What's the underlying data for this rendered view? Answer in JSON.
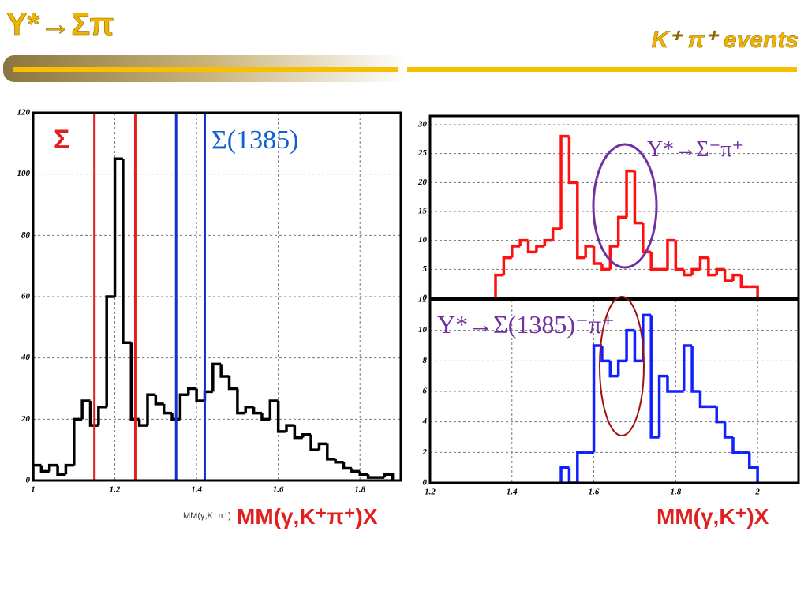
{
  "slide": {
    "title": "Y*→Σπ",
    "subtitle": "K⁺ π⁺ events"
  },
  "chart_data": [
    {
      "type": "histogram",
      "color": "#000000",
      "grid": true,
      "bins": [
        1.0,
        1.02,
        1.04,
        1.06,
        1.08,
        1.1,
        1.12,
        1.14,
        1.16,
        1.18,
        1.2,
        1.22,
        1.24,
        1.26,
        1.28,
        1.3,
        1.32,
        1.34,
        1.36,
        1.38,
        1.4,
        1.42,
        1.44,
        1.46,
        1.48,
        1.5,
        1.52,
        1.54,
        1.56,
        1.58,
        1.6,
        1.62,
        1.64,
        1.66,
        1.68,
        1.7,
        1.72,
        1.74,
        1.76,
        1.78,
        1.8,
        1.82,
        1.84,
        1.86,
        1.88
      ],
      "values": [
        5,
        3,
        5,
        2,
        5,
        20,
        26,
        18,
        24,
        60,
        105,
        45,
        20,
        18,
        28,
        25,
        22,
        20,
        28,
        30,
        26,
        29,
        38,
        34,
        30,
        22,
        24,
        22,
        20,
        26,
        16,
        18,
        14,
        15,
        10,
        12,
        7,
        6,
        4,
        3,
        2,
        1,
        1,
        2
      ],
      "xlim": [
        1.0,
        1.9
      ],
      "ylim": [
        0,
        120
      ],
      "xticks": [
        1,
        1.2,
        1.4,
        1.6,
        1.8
      ],
      "yticks": [
        0,
        20,
        40,
        60,
        80,
        100,
        120
      ],
      "xlabel": "MM(γ,K⁺π⁺)",
      "vlines": [
        {
          "value": 1.15,
          "color": "#e02020"
        },
        {
          "value": 1.25,
          "color": "#e02020"
        },
        {
          "value": 1.35,
          "color": "#1030d0"
        },
        {
          "value": 1.42,
          "color": "#1030d0"
        }
      ],
      "annotations": [
        "Σ",
        "Σ(1385)",
        "MM(γ,K⁺π⁺)X"
      ]
    },
    {
      "type": "histogram",
      "color": "#ff1010",
      "grid": true,
      "bins": [
        1.36,
        1.38,
        1.4,
        1.42,
        1.44,
        1.46,
        1.48,
        1.5,
        1.52,
        1.54,
        1.56,
        1.58,
        1.6,
        1.62,
        1.64,
        1.66,
        1.68,
        1.7,
        1.72,
        1.74,
        1.76,
        1.78,
        1.8,
        1.82,
        1.84,
        1.86,
        1.88,
        1.9,
        1.92,
        1.94,
        1.96,
        1.98,
        2.0
      ],
      "values": [
        4,
        7,
        9,
        10,
        8,
        9,
        10,
        12,
        28,
        20,
        7,
        9,
        6,
        5,
        9,
        14,
        22,
        13,
        8,
        5,
        5,
        10,
        5,
        4,
        5,
        7,
        4,
        5,
        3,
        4,
        2,
        2
      ],
      "xlim": [
        1.2,
        2.1
      ],
      "ylim": [
        0,
        31.5
      ],
      "yticks": [
        0,
        5,
        10,
        15,
        20,
        25,
        30
      ],
      "annotations": [
        "Y*→Σ⁻π⁺"
      ]
    },
    {
      "type": "histogram",
      "color": "#1020ff",
      "grid": true,
      "bins": [
        1.52,
        1.54,
        1.56,
        1.58,
        1.6,
        1.62,
        1.64,
        1.66,
        1.68,
        1.7,
        1.72,
        1.74,
        1.76,
        1.78,
        1.8,
        1.82,
        1.84,
        1.86,
        1.88,
        1.9,
        1.92,
        1.94,
        1.96,
        1.98,
        2.0
      ],
      "values": [
        1,
        0,
        2,
        2,
        9,
        8,
        7,
        8,
        10,
        8,
        11,
        3,
        7,
        6,
        6,
        9,
        6,
        5,
        5,
        4,
        3,
        2,
        2,
        1
      ],
      "xlim": [
        1.2,
        2.1
      ],
      "ylim": [
        0,
        12
      ],
      "xticks": [
        1.2,
        1.4,
        1.6,
        1.8,
        2
      ],
      "yticks": [
        0,
        2,
        4,
        6,
        8,
        10,
        12
      ],
      "annotations": [
        "Y*→Σ(1385)⁻π⁺",
        "MM(γ,K⁺)X"
      ]
    }
  ]
}
